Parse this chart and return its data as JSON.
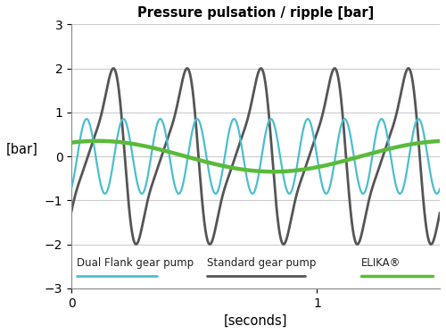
{
  "title": "Pressure pulsation / ripple [bar]",
  "xlabel": "[seconds]",
  "ylabel": "[bar]",
  "xlim": [
    0,
    1.5
  ],
  "ylim": [
    -3,
    3
  ],
  "yticks": [
    -3,
    -2,
    -1,
    0,
    1,
    2,
    3
  ],
  "xticks": [
    0,
    1
  ],
  "colors": {
    "dual_flank": "#555555",
    "standard": "#4BBECE",
    "elika": "#5ABB3A"
  },
  "line_widths": {
    "dual_flank": 2.0,
    "standard": 1.6,
    "elika": 3.2
  },
  "legend": {
    "dual_flank": "Dual Flank gear pump",
    "standard": "Standard gear pump",
    "elika": "ELIKA®"
  },
  "background_color": "#ffffff",
  "grid_color": "#cccccc",
  "dual_freq": 3.33,
  "dual_amp": 2.0,
  "dual_phase": -1.4,
  "std_freq": 6.66,
  "std_amp": 0.85,
  "std_phase": -1.0,
  "elika_freq": 0.7,
  "elika_amp": 0.35,
  "elika_phase": 1.1
}
